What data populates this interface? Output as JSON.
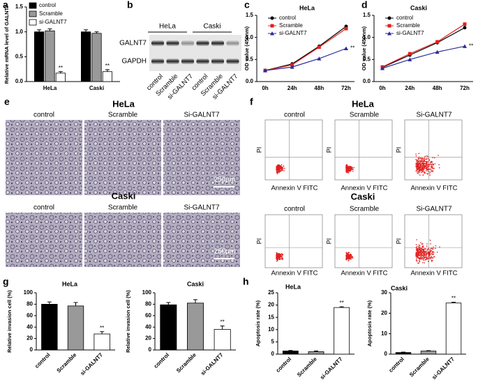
{
  "chart_data": [
    {
      "type": "bar",
      "panel": "a",
      "y_label": "Relative mRNA level of GALNT7",
      "categories": [
        "HeLa",
        "Caski"
      ],
      "series": [
        {
          "name": "control",
          "color": "#000000",
          "values": [
            1.0,
            1.0
          ],
          "errors": [
            0.04,
            0.04
          ]
        },
        {
          "name": "Scramble",
          "color": "#999999",
          "values": [
            1.02,
            0.97
          ],
          "errors": [
            0.04,
            0.03
          ]
        },
        {
          "name": "si-GALNT7",
          "color": "#ffffff",
          "values": [
            0.17,
            0.2
          ],
          "errors": [
            0.03,
            0.04
          ],
          "annotations": [
            {
              "category": "HeLa",
              "text": "**"
            },
            {
              "category": "Caski",
              "text": "**"
            }
          ]
        }
      ],
      "ylim": [
        0,
        1.5
      ],
      "yticks": [
        {
          "value": 0,
          "label": "0.0"
        },
        0.5,
        {
          "value": 1,
          "label": "1.0"
        },
        1.5
      ]
    },
    {
      "type": "line",
      "panel": "c",
      "title": "HeLa",
      "y_label": "OD value (450nm)",
      "categories": [
        "0h",
        "24h",
        "48h",
        "72h"
      ],
      "series": [
        {
          "name": "control",
          "color": "#000000",
          "marker": "circle",
          "values": [
            0.25,
            0.4,
            0.8,
            1.25
          ]
        },
        {
          "name": "Scramble",
          "color": "#e02020",
          "marker": "square",
          "values": [
            0.25,
            0.38,
            0.78,
            1.2
          ]
        },
        {
          "name": "si-GALNT7",
          "color": "#2a2a9a",
          "marker": "triangle",
          "values": [
            0.25,
            0.33,
            0.52,
            0.75
          ],
          "annotations": [
            {
              "category": "72h",
              "text": "**"
            }
          ]
        }
      ],
      "ylim": [
        0,
        1.5
      ],
      "yticks": [
        {
          "value": 0,
          "label": "0.0"
        },
        0.5,
        {
          "value": 1,
          "label": "1.0"
        },
        1.5
      ]
    },
    {
      "type": "line",
      "panel": "d",
      "title": "Caski",
      "y_label": "OD value (450nm)",
      "categories": [
        "0h",
        "24h",
        "48h",
        "72h"
      ],
      "series": [
        {
          "name": "control",
          "color": "#000000",
          "marker": "circle",
          "values": [
            0.32,
            0.6,
            0.88,
            1.22
          ]
        },
        {
          "name": "Scramble",
          "color": "#e02020",
          "marker": "square",
          "values": [
            0.33,
            0.63,
            0.9,
            1.3
          ]
        },
        {
          "name": "si-GALNT7",
          "color": "#2a2a9a",
          "marker": "triangle",
          "values": [
            0.3,
            0.5,
            0.67,
            0.8
          ],
          "annotations": [
            {
              "category": "72h",
              "text": "**"
            }
          ]
        }
      ],
      "ylim": [
        0,
        1.5
      ],
      "yticks": [
        {
          "value": 0,
          "label": "0.0"
        },
        0.5,
        {
          "value": 1,
          "label": "1.0"
        },
        1.5
      ]
    },
    {
      "type": "bar",
      "panel": "g",
      "title": "HeLa",
      "y_label": "Relative invasion cell (%)",
      "categories": [
        "control",
        "Scramble",
        "si-GALNT7"
      ],
      "values": [
        80,
        77,
        28
      ],
      "errors": [
        4,
        6,
        4
      ],
      "colors": [
        "#000000",
        "#999999",
        "#ffffff"
      ],
      "annotations": [
        {
          "category": "si-GALNT7",
          "text": "**"
        }
      ],
      "ylim": [
        0,
        100
      ],
      "yticks": [
        0,
        20,
        40,
        60,
        80,
        100
      ]
    },
    {
      "type": "bar",
      "title": "Caski",
      "y_label": "Relative invasion cell (%)",
      "categories": [
        "control",
        "Scramble",
        "si-GALNT7"
      ],
      "values": [
        79,
        82,
        36
      ],
      "errors": [
        4,
        6,
        6
      ],
      "colors": [
        "#000000",
        "#999999",
        "#ffffff"
      ],
      "annotations": [
        {
          "category": "si-GALNT7",
          "text": "**"
        }
      ],
      "ylim": [
        0,
        100
      ],
      "yticks": [
        0,
        20,
        40,
        60,
        80,
        100
      ]
    },
    {
      "type": "bar",
      "panel": "h",
      "title": "HeLa",
      "y_label": "Apoptosis rate (%)",
      "categories": [
        "control",
        "Scramble",
        "si-GALNT7"
      ],
      "values": [
        1.3,
        1.0,
        19
      ],
      "errors": [
        0.2,
        0.3,
        0.3
      ],
      "colors": [
        "#000000",
        "#999999",
        "#ffffff"
      ],
      "annotations": [
        {
          "category": "si-GALNT7",
          "text": "**"
        }
      ],
      "ylim": [
        0,
        25
      ],
      "yticks": [
        0,
        5,
        10,
        15,
        20,
        25
      ]
    },
    {
      "type": "bar",
      "title": "Caski",
      "y_label": "Apoptosis rate (%)",
      "categories": [
        "control",
        "Scramble",
        "si-GALNT7"
      ],
      "values": [
        0.8,
        1.5,
        25
      ],
      "errors": [
        0.2,
        0.2,
        0.4
      ],
      "colors": [
        "#000000",
        "#999999",
        "#ffffff"
      ],
      "annotations": [
        {
          "category": "si-GALNT7",
          "text": "**"
        }
      ],
      "ylim": [
        0,
        30
      ],
      "yticks": [
        0,
        10,
        20,
        30
      ]
    }
  ],
  "blot": {
    "panel": "b",
    "cell_lines": [
      "HeLa",
      "Caski"
    ],
    "proteins": [
      "GALNT7",
      "GAPDH"
    ],
    "lanes": [
      "control",
      "Scramble",
      "si-GALNT7",
      "control",
      "Scramble",
      "si-GALNT7"
    ]
  },
  "invasion": {
    "panel": "e",
    "groups": [
      {
        "title": "HeLa",
        "columns": [
          "control",
          "Scramble",
          "Si-GALNT7"
        ],
        "scale": "250μm"
      },
      {
        "title": "Caski",
        "columns": [
          "control",
          "Scramble",
          "Si-GALNT7"
        ],
        "scale": "250μm"
      }
    ]
  },
  "flow": {
    "panel": "f",
    "y_label": "PI",
    "x_label": "Annexin V FITC",
    "groups": [
      {
        "title": "HeLa",
        "columns": [
          "control",
          "Scramble",
          "Si-GALNT7"
        ]
      },
      {
        "title": "Caski",
        "columns": [
          "control",
          "Scramble",
          "Si-GALNT7"
        ]
      }
    ]
  }
}
